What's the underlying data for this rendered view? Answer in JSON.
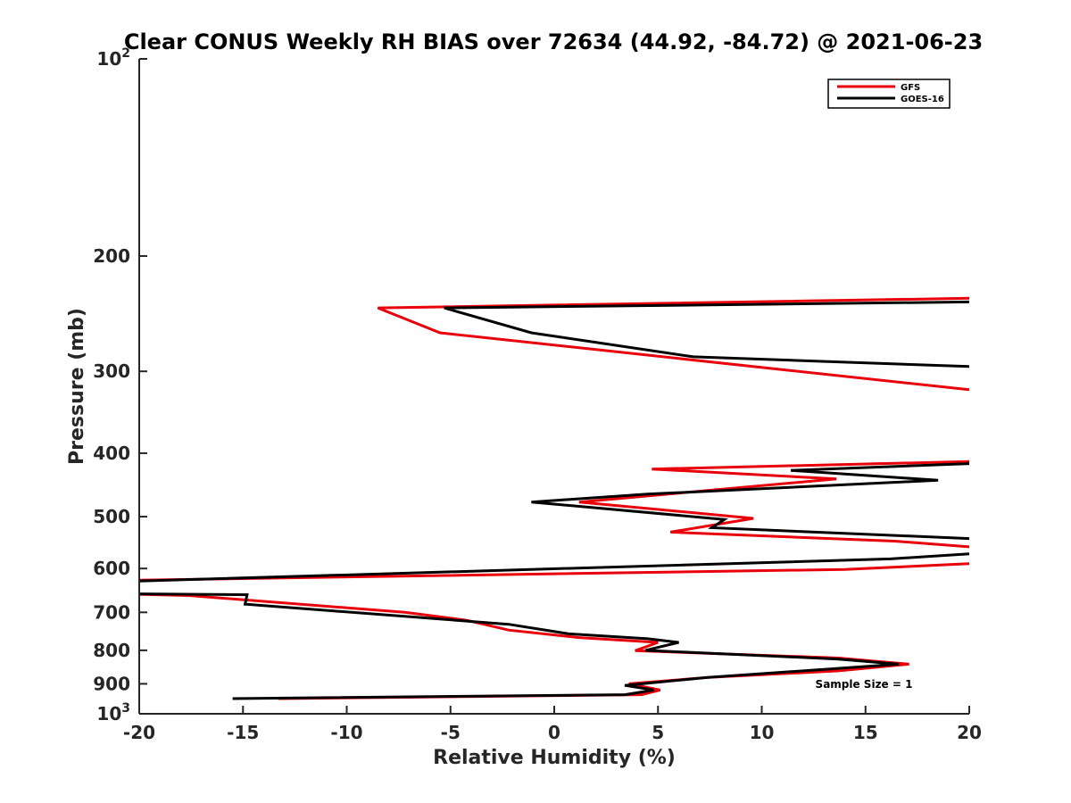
{
  "chart_data": {
    "type": "line",
    "title": "Clear CONUS Weekly RH BIAS over 72634 (44.92, -84.72) @ 2021-06-23",
    "xlabel": "Relative Humidity (%)",
    "ylabel": "Pressure (mb)",
    "xlim": [
      -20,
      20
    ],
    "ylim": [
      100,
      1000
    ],
    "yscale": "log",
    "yreversed": true,
    "x_ticks": [
      -20,
      -15,
      -10,
      -5,
      0,
      5,
      10,
      15,
      20
    ],
    "x_tick_labels": [
      "-20",
      "-15",
      "-10",
      "-5",
      "0",
      "5",
      "10",
      "15",
      "20"
    ],
    "y_ticks": [
      {
        "value": 100,
        "base": "10",
        "exp": "2"
      },
      {
        "value": 200,
        "label": "200"
      },
      {
        "value": 300,
        "label": "300"
      },
      {
        "value": 400,
        "label": "400"
      },
      {
        "value": 500,
        "label": "500"
      },
      {
        "value": 600,
        "label": "600"
      },
      {
        "value": 700,
        "label": "700"
      },
      {
        "value": 800,
        "label": "800"
      },
      {
        "value": 900,
        "label": "900"
      },
      {
        "value": 1000,
        "base": "10",
        "exp": "3"
      }
    ],
    "legend_position": "top-right",
    "annotation": "Sample Size = 1",
    "series": [
      {
        "name": "GFS",
        "color": "#e8000b",
        "segments": [
          [
            [
              20,
              232
            ],
            [
              -8.5,
              240
            ],
            [
              -5.5,
              262
            ],
            [
              20,
              320
            ]
          ],
          [
            [
              20,
              412
            ],
            [
              4.7,
              423
            ],
            [
              13.6,
              438
            ],
            [
              1.2,
              475
            ],
            [
              9.6,
              503
            ],
            [
              5.6,
              528
            ],
            [
              16.4,
              545
            ],
            [
              20,
              556
            ]
          ],
          [
            [
              20,
              590
            ],
            [
              14,
              602
            ],
            [
              -20,
              625
            ]
          ],
          [
            [
              -20,
              657
            ],
            [
              -17.6,
              660
            ],
            [
              -7.2,
              700
            ],
            [
              -4.2,
              720
            ],
            [
              -2.2,
              745
            ],
            [
              1.2,
              765
            ],
            [
              5,
              778
            ],
            [
              3.9,
              801
            ],
            [
              13.7,
              822
            ],
            [
              17.1,
              840
            ],
            [
              13.7,
              860
            ],
            [
              7.4,
              880
            ],
            [
              3.6,
              900
            ],
            [
              5.1,
              920
            ],
            [
              4.2,
              935
            ],
            [
              -13.3,
              948
            ]
          ]
        ]
      },
      {
        "name": "GOES-16",
        "color": "#000000",
        "segments": [
          [
            [
              20,
              235
            ],
            [
              -5.3,
              240
            ],
            [
              -1.1,
              262
            ],
            [
              6.7,
              285
            ],
            [
              20,
              295
            ]
          ],
          [
            [
              20,
              415
            ],
            [
              11.4,
              425
            ],
            [
              18.5,
              440
            ],
            [
              4.5,
              462
            ],
            [
              -1.1,
              475
            ],
            [
              8.2,
              505
            ],
            [
              7.6,
              520
            ],
            [
              20,
              540
            ]
          ],
          [
            [
              20,
              570
            ],
            [
              16.2,
              580
            ],
            [
              -20,
              627
            ]
          ],
          [
            [
              -20,
              656
            ],
            [
              -14.8,
              658
            ],
            [
              -14.9,
              680
            ],
            [
              -2.2,
              730
            ],
            [
              0.7,
              755
            ],
            [
              4.5,
              768
            ],
            [
              6,
              778
            ],
            [
              4.4,
              800
            ],
            [
              13.7,
              825
            ],
            [
              16.6,
              840
            ],
            [
              7.4,
              880
            ],
            [
              3.4,
              905
            ],
            [
              4.8,
              920
            ],
            [
              3.4,
              935
            ],
            [
              -15.5,
              948
            ]
          ]
        ]
      }
    ]
  }
}
